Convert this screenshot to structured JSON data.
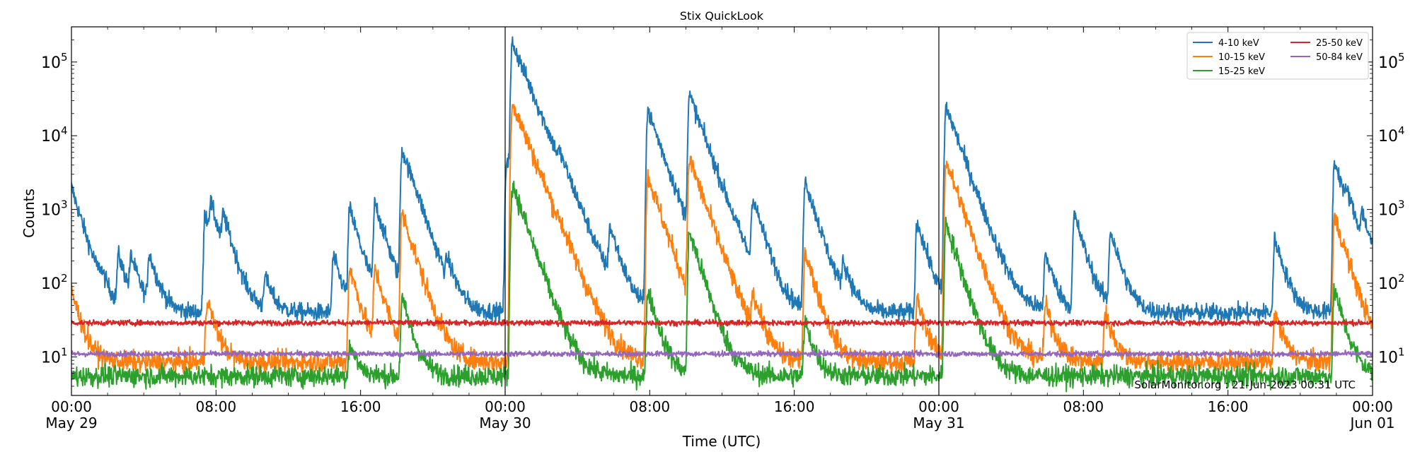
{
  "chart_data": {
    "type": "line",
    "title": "Stix QuickLook",
    "xlabel": "Time (UTC)",
    "ylabel": "Counts",
    "yscale": "log",
    "ylim": [
      3,
      300000
    ],
    "y_ticks": [
      {
        "value": 10,
        "base": "10",
        "exp": "1"
      },
      {
        "value": 100,
        "base": "10",
        "exp": "2"
      },
      {
        "value": 1000,
        "base": "10",
        "exp": "3"
      },
      {
        "value": 10000,
        "base": "10",
        "exp": "4"
      },
      {
        "value": 100000,
        "base": "10",
        "exp": "5"
      }
    ],
    "xlim_hours": [
      0,
      72
    ],
    "x_ticks": [
      {
        "hour": 0,
        "time": "00:00",
        "date": "May 29"
      },
      {
        "hour": 8,
        "time": "08:00",
        "date": ""
      },
      {
        "hour": 16,
        "time": "16:00",
        "date": ""
      },
      {
        "hour": 24,
        "time": "00:00",
        "date": "May 30"
      },
      {
        "hour": 32,
        "time": "08:00",
        "date": ""
      },
      {
        "hour": 40,
        "time": "16:00",
        "date": ""
      },
      {
        "hour": 48,
        "time": "00:00",
        "date": "May 31"
      },
      {
        "hour": 56,
        "time": "08:00",
        "date": ""
      },
      {
        "hour": 64,
        "time": "16:00",
        "date": ""
      },
      {
        "hour": 72,
        "time": "00:00",
        "date": "Jun 01"
      }
    ],
    "day_separators_hours": [
      24,
      48
    ],
    "legend_position": "top-right",
    "annotation": "SolarMonitor.org : 21-Jun-2023 00:31 UTC",
    "series": [
      {
        "name": "4-10 keV",
        "color": "#1f77b4",
        "baseline": 40,
        "peaks": [
          {
            "t": 0.0,
            "peak": 2000
          },
          {
            "t": 1.6,
            "peak": 80
          },
          {
            "t": 2.6,
            "peak": 230
          },
          {
            "t": 3.3,
            "peak": 200
          },
          {
            "t": 4.3,
            "peak": 240
          },
          {
            "t": 7.4,
            "peak": 900
          },
          {
            "t": 7.7,
            "peak": 800
          },
          {
            "t": 8.4,
            "peak": 600
          },
          {
            "t": 10.7,
            "peak": 120
          },
          {
            "t": 14.5,
            "peak": 230
          },
          {
            "t": 15.4,
            "peak": 1000
          },
          {
            "t": 16.8,
            "peak": 1200
          },
          {
            "t": 18.3,
            "peak": 6500
          },
          {
            "t": 18.9,
            "peak": 350
          },
          {
            "t": 20.8,
            "peak": 140
          },
          {
            "t": 24.1,
            "peak": 5000
          },
          {
            "t": 24.4,
            "peak": 180000
          },
          {
            "t": 26.5,
            "peak": 200
          },
          {
            "t": 27.0,
            "peak": 1400
          },
          {
            "t": 29.8,
            "peak": 500
          },
          {
            "t": 31.9,
            "peak": 22000
          },
          {
            "t": 34.2,
            "peak": 35000
          },
          {
            "t": 37.7,
            "peak": 1300
          },
          {
            "t": 40.6,
            "peak": 2500
          },
          {
            "t": 42.7,
            "peak": 160
          },
          {
            "t": 46.8,
            "peak": 700
          },
          {
            "t": 48.4,
            "peak": 25000
          },
          {
            "t": 53.9,
            "peak": 250
          },
          {
            "t": 55.5,
            "peak": 850
          },
          {
            "t": 57.5,
            "peak": 500
          },
          {
            "t": 66.6,
            "peak": 400
          },
          {
            "t": 69.9,
            "peak": 4500
          },
          {
            "t": 70.6,
            "peak": 550
          },
          {
            "t": 71.4,
            "peak": 600
          }
        ]
      },
      {
        "name": "10-15 keV",
        "color": "#ff7f0e",
        "baseline": 8.5,
        "peaks": [
          {
            "t": 0.0,
            "peak": 80
          },
          {
            "t": 7.5,
            "peak": 60
          },
          {
            "t": 15.4,
            "peak": 160
          },
          {
            "t": 16.8,
            "peak": 150
          },
          {
            "t": 18.3,
            "peak": 900
          },
          {
            "t": 24.4,
            "peak": 28000
          },
          {
            "t": 27.0,
            "peak": 80
          },
          {
            "t": 31.9,
            "peak": 2800
          },
          {
            "t": 34.2,
            "peak": 4800
          },
          {
            "t": 37.7,
            "peak": 60
          },
          {
            "t": 40.6,
            "peak": 270
          },
          {
            "t": 46.8,
            "peak": 60
          },
          {
            "t": 48.4,
            "peak": 4500
          },
          {
            "t": 53.9,
            "peak": 50
          },
          {
            "t": 57.2,
            "peak": 40
          },
          {
            "t": 66.6,
            "peak": 40
          },
          {
            "t": 69.9,
            "peak": 800
          }
        ]
      },
      {
        "name": "15-25 keV",
        "color": "#2ca02c",
        "baseline": 5.5,
        "peaks": [
          {
            "t": 15.4,
            "peak": 15
          },
          {
            "t": 18.3,
            "peak": 60
          },
          {
            "t": 24.4,
            "peak": 2200
          },
          {
            "t": 31.9,
            "peak": 80
          },
          {
            "t": 34.2,
            "peak": 500
          },
          {
            "t": 40.6,
            "peak": 30
          },
          {
            "t": 48.4,
            "peak": 650
          },
          {
            "t": 69.9,
            "peak": 80
          }
        ]
      },
      {
        "name": "25-50 keV",
        "color": "#d62728",
        "baseline": 29,
        "peaks": []
      },
      {
        "name": "50-84 keV",
        "color": "#9467bd",
        "baseline": 11,
        "peaks": []
      }
    ]
  }
}
